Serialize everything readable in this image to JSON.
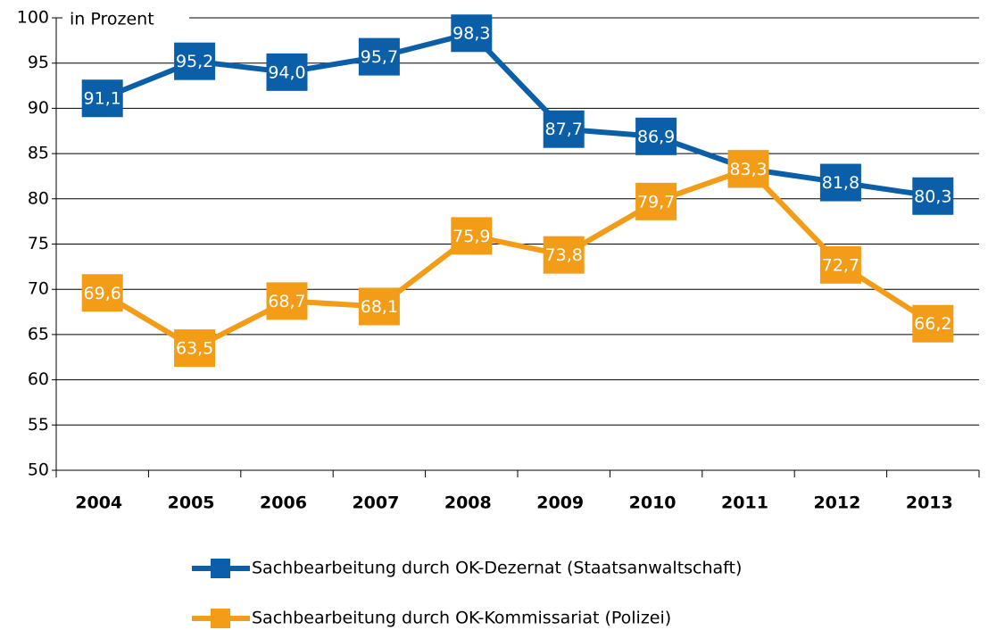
{
  "chart_data": {
    "type": "line",
    "ylabel": "in Prozent",
    "categories": [
      "2004",
      "2005",
      "2006",
      "2007",
      "2008",
      "2009",
      "2010",
      "2011",
      "2012",
      "2013"
    ],
    "series": [
      {
        "name": "Sachbearbeitung durch OK-Dezernat (Staatsanwaltschaft)",
        "color": "#0a5fa8",
        "values": [
          91.1,
          95.2,
          94.0,
          95.7,
          98.3,
          87.7,
          86.9,
          83.3,
          81.8,
          80.3
        ],
        "value_labels": [
          "91,1",
          "95,2",
          "94,0",
          "95,7",
          "98,3",
          "87,7",
          "86,9",
          "83,3",
          "81,8",
          "80,3"
        ]
      },
      {
        "name": "Sachbearbeitung durch OK-Kommissariat (Polizei)",
        "color": "#f29c17",
        "values": [
          69.6,
          63.5,
          68.7,
          68.1,
          75.9,
          73.8,
          79.7,
          83.3,
          72.7,
          66.2
        ],
        "value_labels": [
          "69,6",
          "63,5",
          "68,7",
          "68,1",
          "75,9",
          "73,8",
          "79,7",
          "83,3",
          "72,7",
          "66,2"
        ]
      }
    ],
    "ylim": [
      50,
      100
    ],
    "yticks": [
      50,
      55,
      60,
      65,
      70,
      75,
      80,
      85,
      90,
      95,
      100
    ],
    "grid": true,
    "legend": "bottom"
  }
}
